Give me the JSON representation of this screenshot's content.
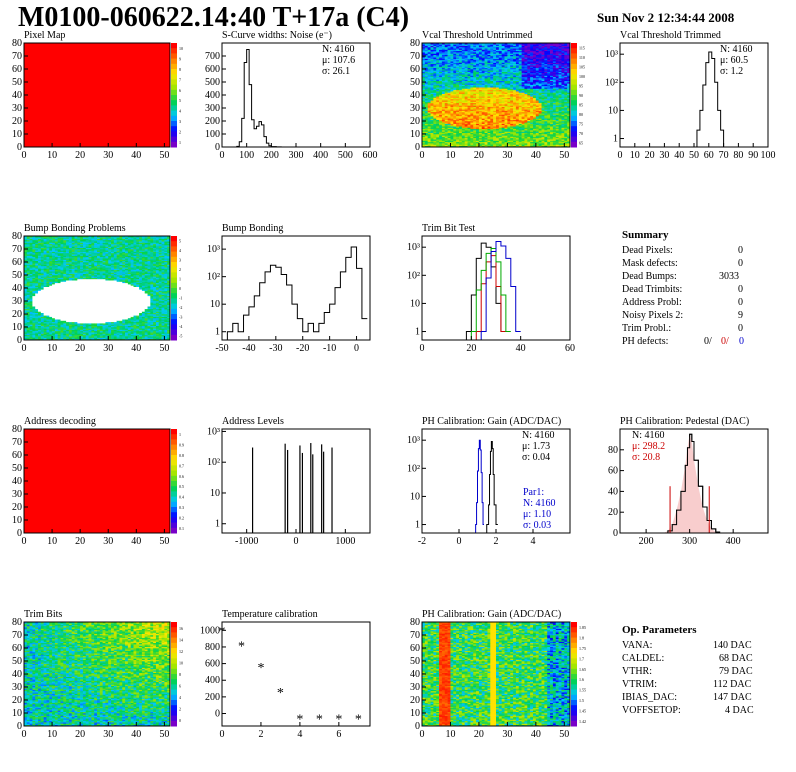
{
  "header": {
    "title": "M0100-060622.14:40 T+17a (C4)",
    "date": "Sun Nov  2 12:34:44 2008"
  },
  "colors": {
    "axis": "#000000",
    "hist_line": "#000000",
    "red": "#cc0000",
    "blue": "#0000cc",
    "green": "#00aa00",
    "pixel_fill": "#ff0000"
  },
  "summary": {
    "title": "Summary",
    "rows": [
      {
        "label": "Dead Pixels:",
        "value": "0"
      },
      {
        "label": "Mask defects:",
        "value": "0"
      },
      {
        "label": "Dead Bumps:",
        "value": "3033"
      },
      {
        "label": "Dead Trimbits:",
        "value": "0"
      },
      {
        "label": "Address Probl:",
        "value": "0"
      },
      {
        "label": "Noisy Pixels 2:",
        "value": "9"
      },
      {
        "label": "Trim Probl.:",
        "value": "0"
      }
    ],
    "ph_label": "PH defects:",
    "ph_values": [
      "0/",
      "0/",
      "0"
    ]
  },
  "op_params": {
    "title": "Op. Parameters",
    "rows": [
      {
        "label": "VANA:",
        "value": "140 DAC"
      },
      {
        "label": "CALDEL:",
        "value": "68 DAC"
      },
      {
        "label": "VTHR:",
        "value": "79 DAC"
      },
      {
        "label": "VTRIM:",
        "value": "112 DAC"
      },
      {
        "label": "IBIAS_DAC:",
        "value": "147 DAC"
      },
      {
        "label": "VOFFSETOP:",
        "value": "4 DAC"
      }
    ]
  },
  "chart_data": [
    {
      "id": "pixel-map",
      "type": "heatmap",
      "title": "Pixel Map",
      "map": "uniform",
      "xlim": [
        0,
        52
      ],
      "ylim": [
        0,
        80
      ],
      "xticks": [
        0,
        10,
        20,
        30,
        40,
        50
      ],
      "yticks": [
        0,
        10,
        20,
        30,
        40,
        50,
        60,
        70,
        80
      ],
      "palette_ticks": [
        "10",
        "9",
        "8",
        "7",
        "6",
        "5",
        "4",
        "3",
        "2",
        "1"
      ]
    },
    {
      "id": "scurve-noise",
      "type": "line",
      "title": "S-Curve widths: Noise (e⁻)",
      "xlim": [
        0,
        600
      ],
      "ylim": [
        0,
        800
      ],
      "xticks": [
        0,
        100,
        200,
        300,
        400,
        500,
        600
      ],
      "yticks": [
        0,
        100,
        200,
        300,
        400,
        500,
        600,
        700
      ],
      "x": [
        50,
        60,
        70,
        80,
        90,
        100,
        110,
        120,
        130,
        140,
        150,
        160,
        170,
        180,
        190,
        200,
        220,
        240
      ],
      "y": [
        0,
        5,
        40,
        220,
        650,
        750,
        480,
        210,
        140,
        160,
        195,
        170,
        80,
        30,
        10,
        3,
        1,
        0
      ],
      "stats": [
        {
          "label": "N: 4160"
        },
        {
          "label": "μ: 107.6"
        },
        {
          "label": "σ: 26.1"
        }
      ]
    },
    {
      "id": "vcal-untrimmed",
      "type": "heatmap",
      "title": "Vcal Threshold Untrimmed",
      "map": "untrimmed",
      "xlim": [
        0,
        52
      ],
      "ylim": [
        0,
        80
      ],
      "xticks": [
        0,
        10,
        20,
        30,
        40,
        50
      ],
      "yticks": [
        0,
        10,
        20,
        30,
        40,
        50,
        60,
        70,
        80
      ],
      "palette_ticks": [
        "115",
        "110",
        "105",
        "100",
        "95",
        "90",
        "85",
        "80",
        "75",
        "70",
        "65"
      ]
    },
    {
      "id": "vcal-trimmed",
      "type": "line",
      "title": "Vcal Threshold Trimmed",
      "yscale": "log",
      "xlim": [
        0,
        100
      ],
      "ylim": [
        0.5,
        2500
      ],
      "xticks": [
        0,
        10,
        20,
        30,
        40,
        50,
        60,
        70,
        80,
        90,
        100
      ],
      "yticks": [
        1,
        10,
        100,
        1000
      ],
      "ytick_labels": [
        "1",
        "10",
        "10²",
        "10³"
      ],
      "x": [
        50,
        52,
        54,
        56,
        58,
        60,
        62,
        64,
        66,
        68,
        70
      ],
      "y": [
        0,
        2,
        10,
        80,
        500,
        1200,
        700,
        100,
        10,
        2,
        0
      ],
      "stats": [
        {
          "label": "N: 4160"
        },
        {
          "label": "μ: 60.5"
        },
        {
          "label": "σ:  1.2"
        }
      ]
    },
    {
      "id": "bump-problems",
      "type": "heatmap",
      "title": "Bump Bonding Problems",
      "map": "bump",
      "xlim": [
        0,
        52
      ],
      "ylim": [
        0,
        80
      ],
      "xticks": [
        0,
        10,
        20,
        30,
        40,
        50
      ],
      "yticks": [
        0,
        10,
        20,
        30,
        40,
        50,
        60,
        70,
        80
      ],
      "palette_ticks": [
        "5",
        "4",
        "3",
        "2",
        "1",
        "0",
        "-1",
        "-2",
        "-3",
        "-4",
        "-5"
      ]
    },
    {
      "id": "bump-bonding",
      "type": "line",
      "title": "Bump Bonding",
      "yscale": "log",
      "xlim": [
        -50,
        5
      ],
      "ylim": [
        0.5,
        3000
      ],
      "xticks": [
        -50,
        -40,
        -30,
        -20,
        -10,
        0
      ],
      "yticks": [
        1,
        10,
        100,
        1000
      ],
      "ytick_labels": [
        "1",
        "10",
        "10²",
        "10³"
      ],
      "x": [
        -48,
        -46,
        -44,
        -42,
        -40,
        -38,
        -36,
        -34,
        -32,
        -30,
        -28,
        -26,
        -24,
        -22,
        -20,
        -18,
        -16,
        -14,
        -12,
        -10,
        -8,
        -6,
        -4,
        -2,
        0,
        2
      ],
      "y": [
        1,
        2,
        1,
        4,
        8,
        20,
        60,
        150,
        260,
        220,
        120,
        50,
        10,
        3,
        1,
        2,
        1,
        2,
        5,
        10,
        40,
        150,
        500,
        1200,
        200,
        3
      ],
      "stats": []
    },
    {
      "id": "trim-bit-test",
      "type": "line",
      "title": "Trim Bit Test",
      "yscale": "log",
      "xlim": [
        0,
        60
      ],
      "ylim": [
        0.5,
        2500
      ],
      "xticks": [
        0,
        20,
        40,
        60
      ],
      "yticks": [
        1,
        10,
        100,
        1000
      ],
      "ytick_labels": [
        "1",
        "10",
        "10²",
        "10³"
      ],
      "series": [
        {
          "name": "",
          "color": "#000000",
          "x": [
            18,
            20,
            22,
            24,
            26,
            28,
            30,
            32
          ],
          "y": [
            1,
            20,
            400,
            1400,
            1000,
            200,
            10,
            1
          ]
        },
        {
          "name": "",
          "color": "#cc0000",
          "x": [
            22,
            24,
            26,
            28,
            30,
            32
          ],
          "y": [
            1,
            50,
            300,
            500,
            40,
            1
          ]
        },
        {
          "name": "",
          "color": "#00aa00",
          "x": [
            20,
            22,
            24,
            26,
            28,
            30,
            32,
            34
          ],
          "y": [
            1,
            30,
            150,
            600,
            900,
            300,
            20,
            1
          ]
        },
        {
          "name": "",
          "color": "#0000cc",
          "x": [
            24,
            26,
            28,
            30,
            32,
            34,
            36,
            38
          ],
          "y": [
            1,
            80,
            700,
            1600,
            1100,
            400,
            40,
            1
          ]
        }
      ]
    },
    {
      "id": "address-decoding",
      "type": "heatmap",
      "title": "Address decoding",
      "map": "uniform",
      "xlim": [
        0,
        52
      ],
      "ylim": [
        0,
        80
      ],
      "xticks": [
        0,
        10,
        20,
        30,
        40,
        50
      ],
      "yticks": [
        0,
        10,
        20,
        30,
        40,
        50,
        60,
        70,
        80
      ],
      "palette_ticks": [
        "1",
        "0.9",
        "0.8",
        "0.7",
        "0.6",
        "0.5",
        "0.4",
        "0.3",
        "0.2",
        "0.1"
      ]
    },
    {
      "id": "address-levels",
      "type": "line",
      "title": "Address Levels",
      "yscale": "log",
      "xlim": [
        -1500,
        1500
      ],
      "ylim": [
        0.5,
        1200
      ],
      "xticks": [
        -1000,
        0,
        1000
      ],
      "yticks": [
        1,
        10,
        100,
        1000
      ],
      "ytick_labels": [
        "1",
        "10",
        "10²",
        "10³"
      ],
      "spikes": [
        {
          "x": -880,
          "y": 300
        },
        {
          "x": -220,
          "y": 400
        },
        {
          "x": -170,
          "y": 250
        },
        {
          "x": 80,
          "y": 350
        },
        {
          "x": 130,
          "y": 200
        },
        {
          "x": 300,
          "y": 420
        },
        {
          "x": 340,
          "y": 180
        },
        {
          "x": 520,
          "y": 380
        },
        {
          "x": 560,
          "y": 220
        },
        {
          "x": 730,
          "y": 300
        }
      ]
    },
    {
      "id": "ph-gain",
      "type": "line",
      "title": "PH Calibration: Gain (ADC/DAC)",
      "yscale": "log",
      "xlim": [
        -2,
        6
      ],
      "ylim": [
        0.5,
        2500
      ],
      "xticks": [
        -2,
        0,
        2,
        4
      ],
      "yticks": [
        1,
        10,
        100,
        1000
      ],
      "ytick_labels": [
        "1",
        "10",
        "10²",
        "10³"
      ],
      "series": [
        {
          "name": "",
          "color": "#000000",
          "x": [
            1.5,
            1.6,
            1.65,
            1.7,
            1.75,
            1.8,
            1.85,
            1.9,
            2.0
          ],
          "y": [
            1,
            5,
            60,
            400,
            900,
            500,
            60,
            5,
            1
          ]
        },
        {
          "name": "",
          "color": "#0000cc",
          "x": [
            0.9,
            0.95,
            1.0,
            1.05,
            1.1,
            1.15,
            1.2,
            1.25,
            1.3
          ],
          "y": [
            1,
            6,
            80,
            500,
            1000,
            450,
            70,
            6,
            1
          ]
        }
      ],
      "stats": [
        {
          "label": "N: 4160"
        },
        {
          "label": "μ: 1.73"
        },
        {
          "label": "σ: 0.04"
        }
      ],
      "stats2_title": "Par1:",
      "stats2": [
        {
          "label": "N: 4160"
        },
        {
          "label": "μ: 1.10"
        },
        {
          "label": "σ: 0.03"
        }
      ]
    },
    {
      "id": "ph-pedestal",
      "type": "line",
      "title": "PH Calibration: Pedestal (DAC)",
      "xlim": [
        140,
        480
      ],
      "ylim": [
        0,
        100
      ],
      "xticks": [
        200,
        300,
        400
      ],
      "yticks": [
        0,
        20,
        40,
        60,
        80
      ],
      "x": [
        240,
        250,
        260,
        270,
        280,
        290,
        295,
        300,
        305,
        310,
        320,
        330,
        340,
        350,
        360
      ],
      "y": [
        0,
        2,
        8,
        22,
        40,
        65,
        82,
        95,
        88,
        70,
        45,
        25,
        12,
        4,
        1
      ],
      "fit_lines": [
        255,
        345
      ],
      "stats": [
        {
          "label": "N: 4160",
          "color": "#000000"
        },
        {
          "label": "μ: 298.2",
          "color": "#cc0000"
        },
        {
          "label": "σ: 20.8",
          "color": "#cc0000"
        }
      ]
    },
    {
      "id": "trim-bits",
      "type": "heatmap",
      "title": "Trim Bits",
      "map": "trim",
      "xlim": [
        0,
        52
      ],
      "ylim": [
        0,
        80
      ],
      "xticks": [
        0,
        10,
        20,
        30,
        40,
        50
      ],
      "yticks": [
        0,
        10,
        20,
        30,
        40,
        50,
        60,
        70,
        80
      ],
      "palette_ticks": [
        "16",
        "14",
        "12",
        "10",
        "8",
        "6",
        "4",
        "2",
        "0"
      ]
    },
    {
      "id": "temp-calibration",
      "type": "scatter",
      "title": "Temperature calibration",
      "xlim": [
        0,
        7.6
      ],
      "ylim": [
        -150,
        1100
      ],
      "xticks": [
        0,
        2,
        4,
        6
      ],
      "yticks": [
        0,
        200,
        400,
        600,
        800,
        1000
      ],
      "x": [
        0,
        1,
        2,
        3,
        4,
        5,
        6,
        7
      ],
      "y": [
        1000,
        820,
        560,
        260,
        -60,
        -60,
        -60,
        -60
      ]
    },
    {
      "id": "ph-gain-map",
      "type": "heatmap",
      "title": "PH Calibration: Gain (ADC/DAC)",
      "map": "gain",
      "xlim": [
        0,
        52
      ],
      "ylim": [
        0,
        80
      ],
      "xticks": [
        0,
        10,
        20,
        30,
        40,
        50
      ],
      "yticks": [
        0,
        10,
        20,
        30,
        40,
        50,
        60,
        70,
        80
      ],
      "palette_ticks": [
        "1.85",
        "1.8",
        "1.75",
        "1.7",
        "1.65",
        "1.6",
        "1.55",
        "1.5",
        "1.45",
        "1.42"
      ]
    }
  ]
}
